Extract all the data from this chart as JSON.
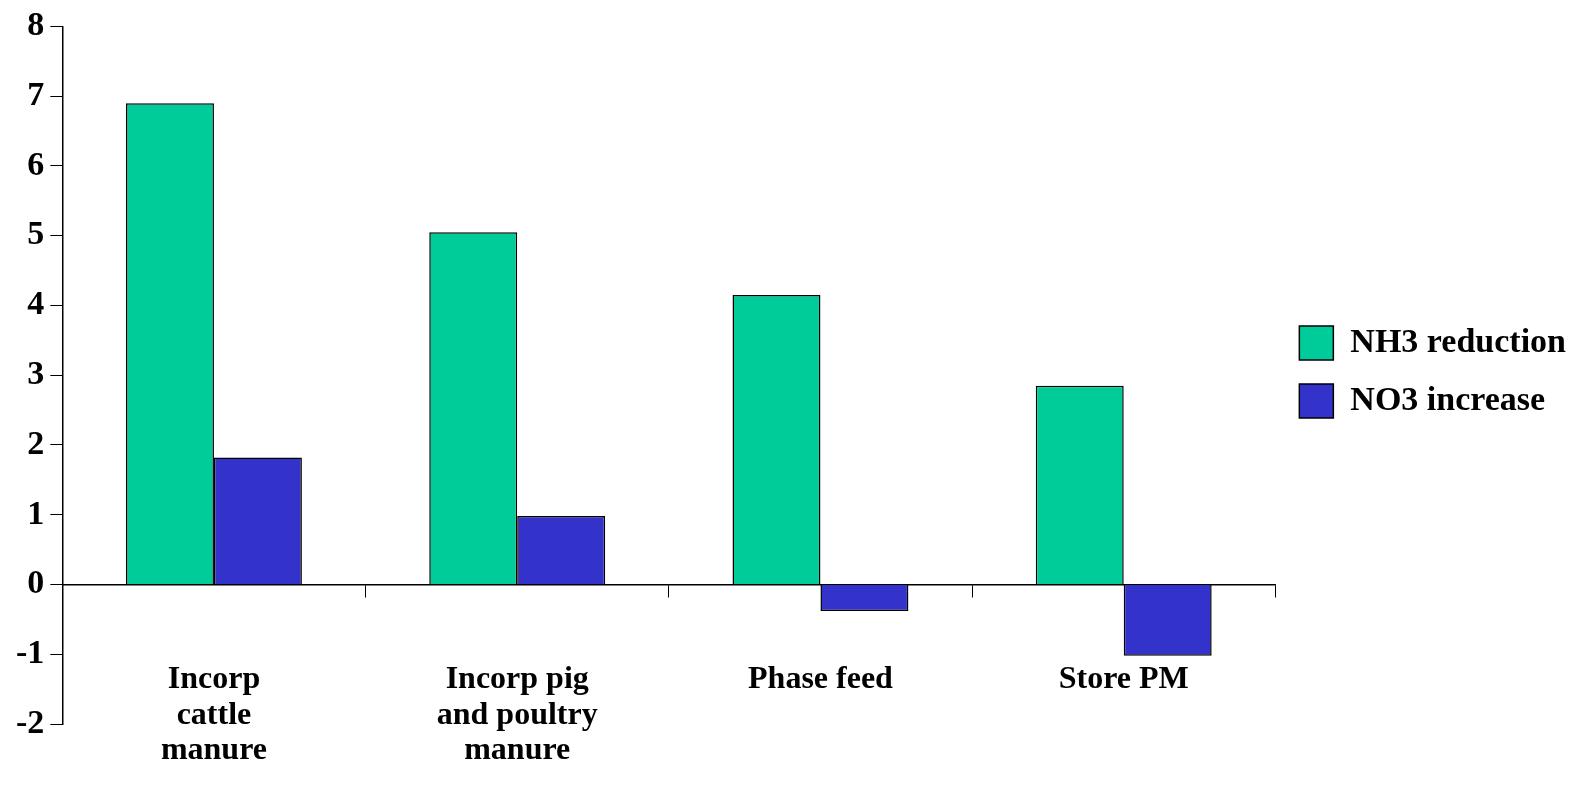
{
  "chart_data": {
    "type": "bar",
    "categories": [
      "Incorp cattle manure",
      "Incorp pig and poultry manure",
      "Phase feed",
      "Store PM"
    ],
    "series": [
      {
        "name": "NH3 reduction",
        "color": "#00cc99",
        "values": [
          6.9,
          5.05,
          4.15,
          2.85
        ]
      },
      {
        "name": "NO3 increase",
        "color": "#3333cc",
        "values": [
          1.82,
          0.98,
          -0.38,
          -1.02
        ]
      }
    ],
    "ylim": [
      -2,
      8
    ],
    "yticks": [
      -2,
      -1,
      0,
      1,
      2,
      3,
      4,
      5,
      6,
      7,
      8
    ],
    "grid": false,
    "legend": "right"
  }
}
